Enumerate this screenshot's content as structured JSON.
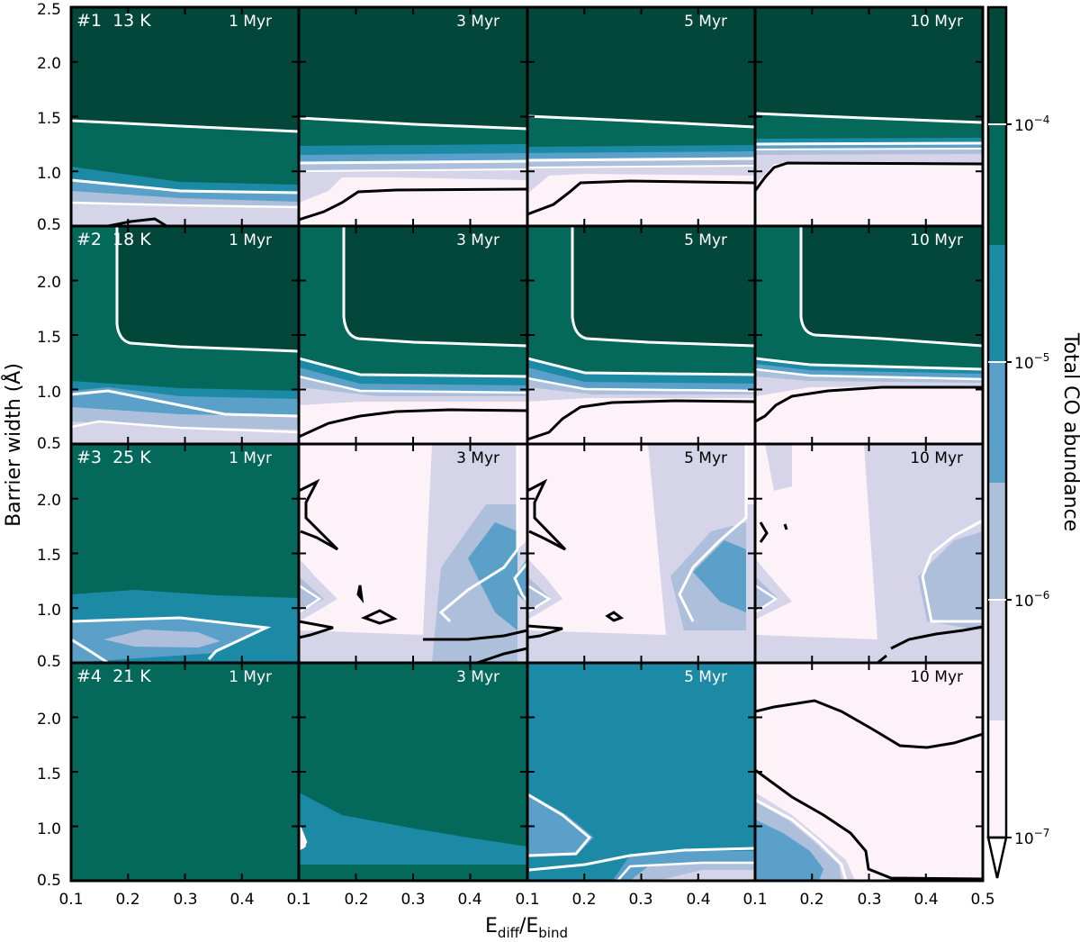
{
  "chart_data": {
    "type": "contour",
    "xlabel": {
      "main": "E",
      "sub1": "diff",
      "sep": "/E",
      "sub2": "bind"
    },
    "ylabel": "Barrier width (Å)",
    "xlim": [
      0.1,
      0.5
    ],
    "ylim": [
      0.5,
      2.5
    ],
    "x_ticks": [
      "0.1",
      "0.2",
      "0.3",
      "0.4",
      "0.5"
    ],
    "y_ticks": [
      "0.5",
      "1.0",
      "1.5",
      "2.0",
      "2.5"
    ],
    "times": [
      "1 Myr",
      "3 Myr",
      "5 Myr",
      "10 Myr"
    ],
    "rows": [
      {
        "label": "#1  13 K"
      },
      {
        "label": "#2  18 K"
      },
      {
        "label": "#3  25 K"
      },
      {
        "label": "#4  21 K"
      }
    ],
    "colorbar": {
      "label": "Total CO abundance",
      "ticks": [
        {
          "base": "10",
          "exp": "−4"
        },
        {
          "base": "10",
          "exp": "−5"
        },
        {
          "base": "10",
          "exp": "−6"
        },
        {
          "base": "10",
          "exp": "−7"
        }
      ],
      "levels_colors": [
        "#fdf2f8",
        "#d6d4e8",
        "#adbfdb",
        "#5aa0c8",
        "#1d8aa5",
        "#04685a",
        "#03463a"
      ],
      "extend": "min"
    },
    "contour_lines": {
      "white": "#ffffff",
      "black": "#000000"
    }
  }
}
